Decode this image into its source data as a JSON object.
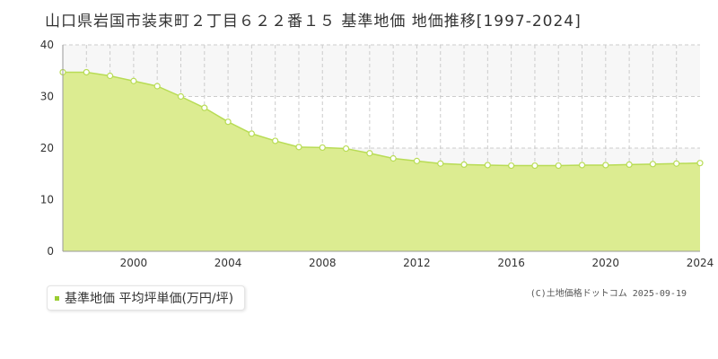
{
  "title": "山口県岩国市装束町２丁目６２２番１５ 基準地価 地価推移[1997-2024]",
  "legend_label": "基準地価 平均坪単価(万円/坪)",
  "copyright": "(C)土地価格ドットコム 2025-09-19",
  "colors": {
    "fill": "#dcec91",
    "line": "#b8dc55",
    "marker": "#9acd32",
    "band": "#f7f7f7",
    "grid": "#cccccc"
  },
  "chart_data": {
    "type": "area",
    "title": "",
    "xlabel": "",
    "ylabel": "",
    "xlim": [
      1997,
      2024
    ],
    "ylim": [
      0,
      40
    ],
    "x_ticks": [
      2000,
      2004,
      2008,
      2012,
      2016,
      2020,
      2024
    ],
    "y_ticks": [
      0,
      10,
      20,
      30,
      40
    ],
    "grid": true,
    "legend_position": "bottom-left",
    "series": [
      {
        "name": "基準地価 平均坪単価(万円/坪)",
        "x": [
          1997,
          1998,
          1999,
          2000,
          2001,
          2002,
          2003,
          2004,
          2005,
          2006,
          2007,
          2008,
          2009,
          2010,
          2011,
          2012,
          2013,
          2014,
          2015,
          2016,
          2017,
          2018,
          2019,
          2020,
          2021,
          2022,
          2023,
          2024
        ],
        "values": [
          34.7,
          34.7,
          34.0,
          33.0,
          32.0,
          30.0,
          27.8,
          25.1,
          22.8,
          21.4,
          20.2,
          20.1,
          19.9,
          19.0,
          18.0,
          17.5,
          17.0,
          16.8,
          16.7,
          16.6,
          16.6,
          16.6,
          16.7,
          16.7,
          16.8,
          16.9,
          17.0,
          17.1
        ]
      }
    ]
  }
}
